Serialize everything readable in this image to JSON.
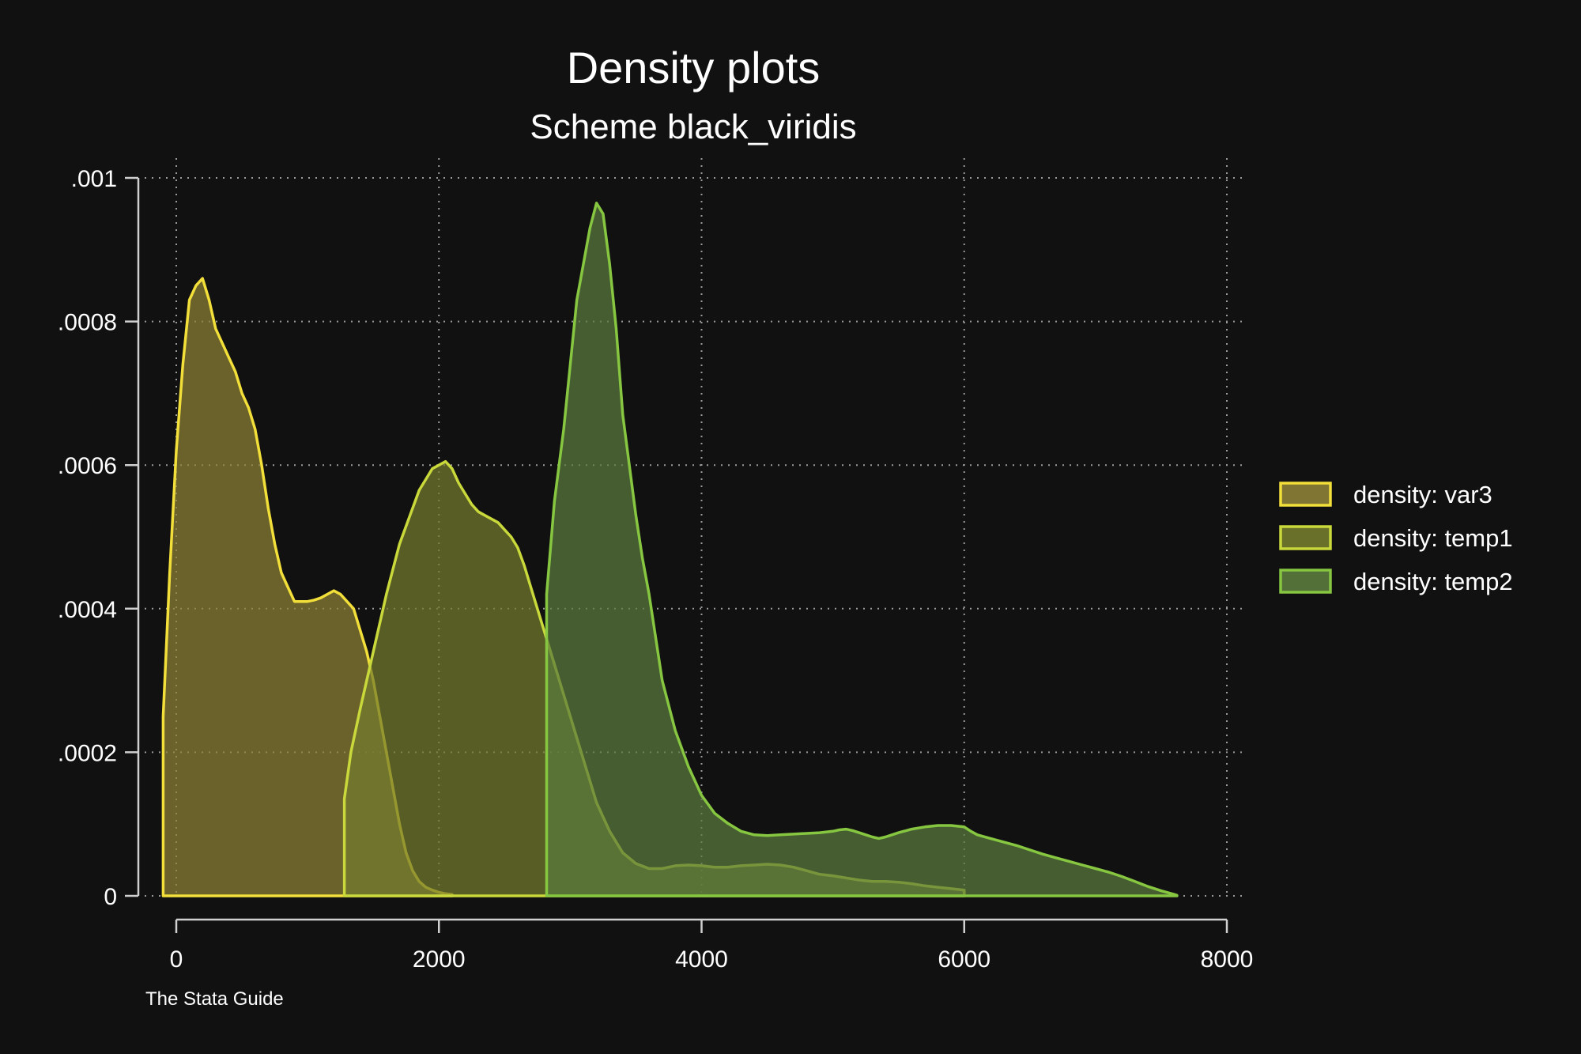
{
  "chart_data": {
    "type": "area",
    "title": "Density plots",
    "subtitle": "Scheme black_viridis",
    "note": "The Stata Guide",
    "xlabel": "",
    "ylabel": "",
    "xlim": [
      0,
      8000
    ],
    "ylim": [
      0,
      0.001
    ],
    "x_ticks": [
      0,
      2000,
      4000,
      6000,
      8000
    ],
    "x_tick_labels": [
      "0",
      "2000",
      "4000",
      "6000",
      "8000"
    ],
    "y_ticks": [
      0,
      0.0002,
      0.0004,
      0.0006,
      0.0008,
      0.001
    ],
    "y_tick_labels": [
      "0",
      ".0002",
      ".0004",
      ".0006",
      ".0008",
      ".001"
    ],
    "grid": true,
    "legend_position": "right",
    "background": "#111111",
    "series": [
      {
        "name": "density: var3",
        "stroke": "#f2df3a",
        "fill": "#8d8136",
        "x": [
          -100,
          -100,
          -50,
          0,
          50,
          100,
          150,
          200,
          250,
          300,
          350,
          400,
          450,
          500,
          550,
          600,
          650,
          700,
          750,
          800,
          850,
          900,
          950,
          1000,
          1050,
          1100,
          1150,
          1200,
          1250,
          1300,
          1350,
          1400,
          1450,
          1500,
          1550,
          1600,
          1650,
          1700,
          1750,
          1800,
          1850,
          1900,
          1950,
          2000,
          2050,
          2100,
          2100
        ],
        "y": [
          0,
          0.00025,
          0.00045,
          0.00062,
          0.00074,
          0.00083,
          0.00085,
          0.00086,
          0.00083,
          0.00079,
          0.00077,
          0.00075,
          0.00073,
          0.0007,
          0.00068,
          0.00065,
          0.0006,
          0.00054,
          0.00049,
          0.00045,
          0.00043,
          0.00041,
          0.00041,
          0.00041,
          0.000412,
          0.000415,
          0.00042,
          0.000425,
          0.00042,
          0.00041,
          0.0004,
          0.00037,
          0.00034,
          0.0003,
          0.00025,
          0.0002,
          0.00015,
          0.0001,
          6e-05,
          3.5e-05,
          2e-05,
          1.2e-05,
          8e-06,
          5e-06,
          3e-06,
          2e-06,
          0
        ]
      },
      {
        "name": "density: temp1",
        "stroke": "#c9d83a",
        "fill": "#737b2c",
        "x": [
          1280,
          1280,
          1330,
          1400,
          1500,
          1600,
          1700,
          1800,
          1850,
          1900,
          1950,
          2000,
          2050,
          2100,
          2150,
          2200,
          2250,
          2300,
          2350,
          2400,
          2450,
          2500,
          2550,
          2600,
          2650,
          2700,
          2750,
          2800,
          2850,
          2900,
          2950,
          3000,
          3100,
          3200,
          3300,
          3400,
          3500,
          3600,
          3700,
          3800,
          3900,
          4000,
          4100,
          4200,
          4300,
          4400,
          4500,
          4600,
          4700,
          4800,
          4900,
          5000,
          5100,
          5200,
          5300,
          5400,
          5500,
          5600,
          5700,
          5800,
          5900,
          6000,
          6000
        ],
        "y": [
          0,
          0.000135,
          0.0002,
          0.00026,
          0.00034,
          0.00042,
          0.00049,
          0.00054,
          0.000565,
          0.00058,
          0.000595,
          0.0006,
          0.000605,
          0.000595,
          0.000575,
          0.00056,
          0.000545,
          0.000535,
          0.00053,
          0.000525,
          0.00052,
          0.00051,
          0.0005,
          0.000485,
          0.00046,
          0.00043,
          0.0004,
          0.00037,
          0.00034,
          0.00031,
          0.00028,
          0.00025,
          0.00019,
          0.00013,
          9e-05,
          6e-05,
          4.5e-05,
          3.8e-05,
          3.8e-05,
          4.2e-05,
          4.3e-05,
          4.2e-05,
          4e-05,
          4e-05,
          4.2e-05,
          4.3e-05,
          4.4e-05,
          4.3e-05,
          4e-05,
          3.5e-05,
          3e-05,
          2.8e-05,
          2.5e-05,
          2.2e-05,
          2e-05,
          2e-05,
          1.9e-05,
          1.7e-05,
          1.4e-05,
          1.2e-05,
          1e-05,
          8e-06,
          0
        ]
      },
      {
        "name": "density: temp2",
        "stroke": "#86c640",
        "fill": "#5a7b3d",
        "x": [
          2820,
          2820,
          2880,
          2950,
          3000,
          3050,
          3100,
          3150,
          3200,
          3250,
          3300,
          3350,
          3400,
          3450,
          3500,
          3550,
          3600,
          3700,
          3800,
          3900,
          4000,
          4100,
          4200,
          4300,
          4400,
          4500,
          4600,
          4700,
          4800,
          4900,
          5000,
          5050,
          5100,
          5150,
          5200,
          5250,
          5300,
          5350,
          5400,
          5450,
          5500,
          5600,
          5700,
          5800,
          5900,
          6000,
          6050,
          6100,
          6200,
          6300,
          6400,
          6500,
          6600,
          6700,
          6800,
          6900,
          7000,
          7100,
          7200,
          7300,
          7400,
          7500,
          7600,
          7620,
          7620
        ],
        "y": [
          0,
          0.00042,
          0.00055,
          0.00065,
          0.00074,
          0.00083,
          0.00088,
          0.00093,
          0.000965,
          0.00095,
          0.00088,
          0.00079,
          0.00067,
          0.0006,
          0.00053,
          0.00047,
          0.00042,
          0.0003,
          0.00023,
          0.00018,
          0.00014,
          0.000115,
          0.000101,
          9e-05,
          8.5e-05,
          8.4e-05,
          8.5e-05,
          8.6e-05,
          8.7e-05,
          8.8e-05,
          9e-05,
          9.2e-05,
          9.3e-05,
          9.1e-05,
          8.8e-05,
          8.5e-05,
          8.2e-05,
          8e-05,
          8.2e-05,
          8.5e-05,
          8.8e-05,
          9.3e-05,
          9.6e-05,
          9.8e-05,
          9.8e-05,
          9.6e-05,
          9e-05,
          8.5e-05,
          8e-05,
          7.5e-05,
          7e-05,
          6.4e-05,
          5.8e-05,
          5.3e-05,
          4.8e-05,
          4.3e-05,
          3.8e-05,
          3.3e-05,
          2.7e-05,
          2e-05,
          1.3e-05,
          7e-06,
          2e-06,
          8e-07,
          0
        ]
      }
    ]
  }
}
